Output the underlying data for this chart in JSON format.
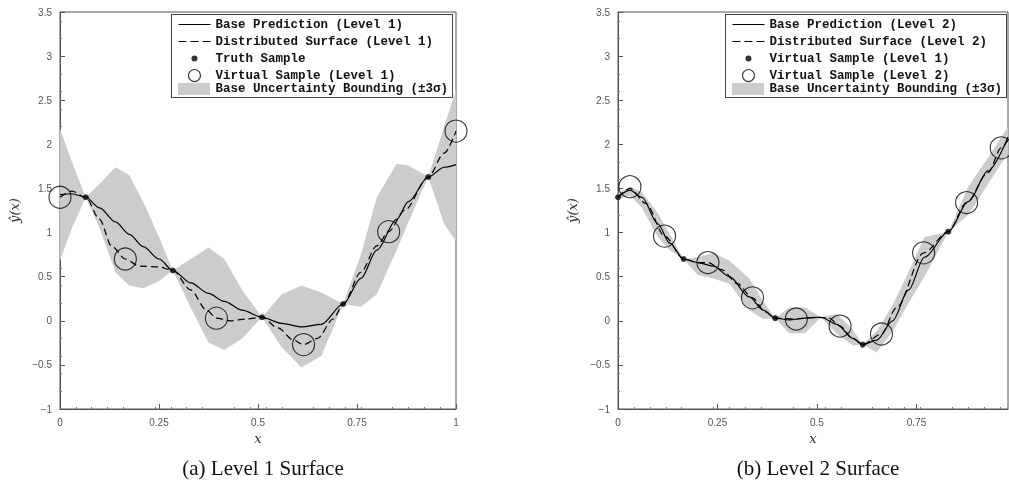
{
  "chart_data": [
    {
      "type": "line",
      "title": "(a) Level 1 Surface",
      "xlabel": "x",
      "ylabel": "ŷ(x)",
      "xlim": [
        0,
        1
      ],
      "ylim": [
        -1,
        3.5
      ],
      "xticks": [
        0,
        0.25,
        0.5,
        0.75,
        1
      ],
      "yticks": [
        -1,
        -0.5,
        0,
        0.5,
        1,
        1.5,
        2,
        2.5,
        3,
        3.5
      ],
      "grid": false,
      "legend": "top right",
      "annotations": [
        "Base Uncertainty Bounding (±3σ)"
      ],
      "series": [
        {
          "name": "Base Prediction (Level 1)",
          "line_style": "solid",
          "color": "#000000",
          "x": [
            0,
            0.03,
            0.065,
            0.1,
            0.14,
            0.175,
            0.21,
            0.25,
            0.285,
            0.33,
            0.375,
            0.415,
            0.46,
            0.51,
            0.56,
            0.61,
            0.66,
            0.715,
            0.76,
            0.8,
            0.85,
            0.88,
            0.93,
            0.97,
            1
          ],
          "values": [
            1.43,
            1.44,
            1.4,
            1.28,
            1.12,
            0.98,
            0.84,
            0.7,
            0.57,
            0.43,
            0.31,
            0.22,
            0.12,
            0.04,
            -0.03,
            -0.07,
            -0.04,
            0.19,
            0.48,
            0.8,
            1.15,
            1.35,
            1.63,
            1.74,
            1.77
          ],
          "lower": [
            0.68,
            1.05,
            1.4,
            1.05,
            0.55,
            0.4,
            0.37,
            0.45,
            0.57,
            0.15,
            -0.25,
            -0.33,
            -0.2,
            0.04,
            -0.3,
            -0.53,
            -0.4,
            0.19,
            0.16,
            0.3,
            0.8,
            1.12,
            1.63,
            1.1,
            0.9
          ],
          "upper": [
            2.18,
            1.8,
            1.4,
            1.55,
            1.74,
            1.65,
            1.35,
            0.95,
            0.57,
            0.7,
            0.83,
            0.7,
            0.35,
            0.04,
            0.3,
            0.4,
            0.32,
            0.19,
            0.75,
            1.4,
            1.78,
            1.76,
            1.63,
            2.2,
            2.62
          ]
        },
        {
          "name": "Distributed Surface (Level 1)",
          "line_style": "dashed",
          "color": "#000000",
          "x": [
            0,
            0.03,
            0.065,
            0.1,
            0.13,
            0.165,
            0.2,
            0.25,
            0.285,
            0.33,
            0.37,
            0.395,
            0.43,
            0.47,
            0.51,
            0.55,
            0.59,
            0.615,
            0.65,
            0.69,
            0.715,
            0.76,
            0.8,
            0.83,
            0.87,
            0.93,
            0.97,
            1
          ],
          "values": [
            1.4,
            1.47,
            1.4,
            1.15,
            0.85,
            0.7,
            0.62,
            0.61,
            0.57,
            0.35,
            0.12,
            0.03,
            0,
            0.02,
            0.04,
            -0.08,
            -0.22,
            -0.27,
            -0.2,
            0.02,
            0.19,
            0.55,
            0.85,
            1.01,
            1.25,
            1.63,
            1.9,
            2.15
          ]
        },
        {
          "name": "Truth Sample",
          "type": "scatter",
          "marker": "circle",
          "color": "#000000",
          "x": [
            0.065,
            0.285,
            0.51,
            0.715,
            0.93
          ],
          "values": [
            1.4,
            0.57,
            0.04,
            0.19,
            1.63
          ]
        },
        {
          "name": "Virtual Sample (Level 1)",
          "type": "bubble",
          "marker": "circle",
          "color": "#000000",
          "x": [
            0,
            0.165,
            0.395,
            0.615,
            0.83,
            1
          ],
          "values": [
            1.4,
            0.7,
            0.03,
            -0.27,
            1.01,
            2.15
          ],
          "sizes": [
            1,
            1,
            1,
            1,
            1,
            1
          ]
        }
      ]
    },
    {
      "type": "line",
      "title": "(b) Level 2 Surface",
      "xlabel": "x",
      "ylabel": "ŷ(x)",
      "xlim": [
        0,
        0.98
      ],
      "ylim": [
        -1,
        3.5
      ],
      "xticks": [
        0,
        0.25,
        0.5,
        0.75
      ],
      "yticks": [
        -1,
        -0.5,
        0,
        0.5,
        1,
        1.5,
        2,
        2.5,
        3,
        3.5
      ],
      "grid": false,
      "legend": "top right",
      "annotations": [
        "Base Uncertainty Bounding (±3σ)"
      ],
      "series": [
        {
          "name": "Base Prediction (Level 2)",
          "line_style": "solid",
          "color": "#000000",
          "x": [
            0,
            0.03,
            0.06,
            0.1,
            0.13,
            0.165,
            0.2,
            0.24,
            0.28,
            0.33,
            0.365,
            0.395,
            0.43,
            0.47,
            0.51,
            0.55,
            0.59,
            0.615,
            0.65,
            0.69,
            0.73,
            0.77,
            0.83,
            0.88,
            0.93,
            0.98
          ],
          "values": [
            1.4,
            1.48,
            1.4,
            1.1,
            0.88,
            0.7,
            0.66,
            0.62,
            0.5,
            0.27,
            0.12,
            0.03,
            0.01,
            0.03,
            0.04,
            -0.04,
            -0.2,
            -0.27,
            -0.22,
            0,
            0.35,
            0.72,
            1.01,
            1.35,
            1.7,
            2.08
          ],
          "lower": [
            1.38,
            1.42,
            1.28,
            0.95,
            0.8,
            0.7,
            0.52,
            0.48,
            0.42,
            0.12,
            0.02,
            0.03,
            -0.14,
            -0.14,
            0.04,
            -0.15,
            -0.28,
            -0.27,
            -0.36,
            -0.12,
            0.2,
            0.5,
            1.01,
            1.2,
            1.55,
            1.9
          ],
          "upper": [
            1.44,
            1.52,
            1.46,
            1.22,
            0.98,
            0.7,
            0.72,
            0.77,
            0.68,
            0.48,
            0.22,
            0.03,
            0.15,
            0.15,
            0.04,
            0.08,
            -0.1,
            -0.27,
            -0.12,
            0.18,
            0.55,
            0.95,
            1.01,
            1.52,
            1.85,
            2.2
          ]
        },
        {
          "name": "Distributed Surface (Level 2)",
          "line_style": "dashed",
          "color": "#000000",
          "x": [
            0,
            0.03,
            0.07,
            0.117,
            0.165,
            0.2,
            0.226,
            0.26,
            0.3,
            0.338,
            0.37,
            0.395,
            0.448,
            0.5,
            0.53,
            0.558,
            0.59,
            0.615,
            0.662,
            0.7,
            0.768,
            0.83,
            0.876,
            0.93,
            0.963,
            0.98
          ],
          "values": [
            1.4,
            1.5,
            1.33,
            0.96,
            0.7,
            0.66,
            0.66,
            0.58,
            0.42,
            0.26,
            0.1,
            0.03,
            0.02,
            0.04,
            0.03,
            -0.06,
            -0.2,
            -0.27,
            -0.15,
            0.15,
            0.77,
            1.01,
            1.34,
            1.68,
            1.96,
            2.05
          ]
        },
        {
          "name": "Virtual Sample (Level 1)",
          "type": "scatter",
          "marker": "circle",
          "color": "#000000",
          "x": [
            0,
            0.165,
            0.395,
            0.615,
            0.83
          ],
          "values": [
            1.4,
            0.7,
            0.03,
            -0.27,
            1.01
          ]
        },
        {
          "name": "Virtual Sample (Level 2)",
          "type": "bubble",
          "marker": "circle",
          "color": "#000000",
          "x": [
            0.03,
            0.117,
            0.226,
            0.338,
            0.448,
            0.558,
            0.662,
            0.768,
            0.876,
            0.963
          ],
          "values": [
            1.52,
            0.96,
            0.66,
            0.26,
            0.02,
            -0.06,
            -0.15,
            0.77,
            1.34,
            1.96
          ],
          "sizes": [
            1,
            1,
            1,
            1,
            1,
            1,
            1,
            1,
            1,
            1
          ]
        }
      ]
    }
  ]
}
